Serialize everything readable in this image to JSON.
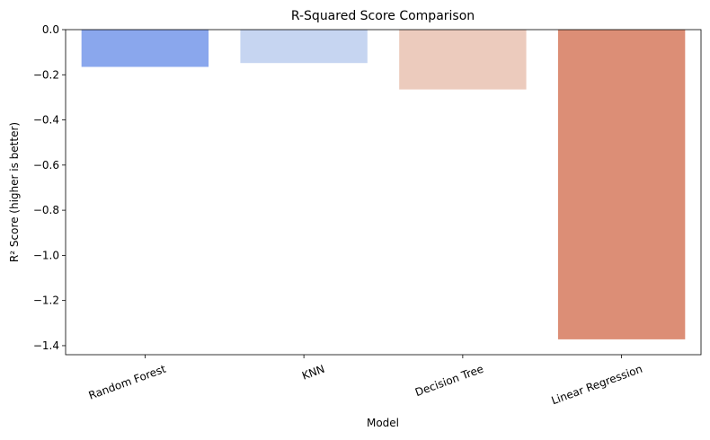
{
  "chart_data": {
    "type": "bar",
    "title": "R-Squared Score Comparison",
    "xlabel": "Model",
    "ylabel": "R² Score (higher is better)",
    "categories": [
      "Random Forest",
      "KNN",
      "Decision Tree",
      "Linear Regression"
    ],
    "values": [
      -0.165,
      -0.148,
      -0.265,
      -1.372
    ],
    "colors": [
      "#8aa7ed",
      "#c6d5f1",
      "#eccbbd",
      "#dc8e76"
    ],
    "ylim": [
      -1.44,
      0.0
    ],
    "yticks": [
      0.0,
      -0.2,
      -0.4,
      -0.6,
      -0.8,
      -1.0,
      -1.2,
      -1.4
    ],
    "ytick_labels": [
      "0.0",
      "−0.2",
      "−0.4",
      "−0.6",
      "−0.8",
      "−1.0",
      "−1.2",
      "−1.4"
    ],
    "grid": false,
    "xtick_rotation_deg": -20
  }
}
